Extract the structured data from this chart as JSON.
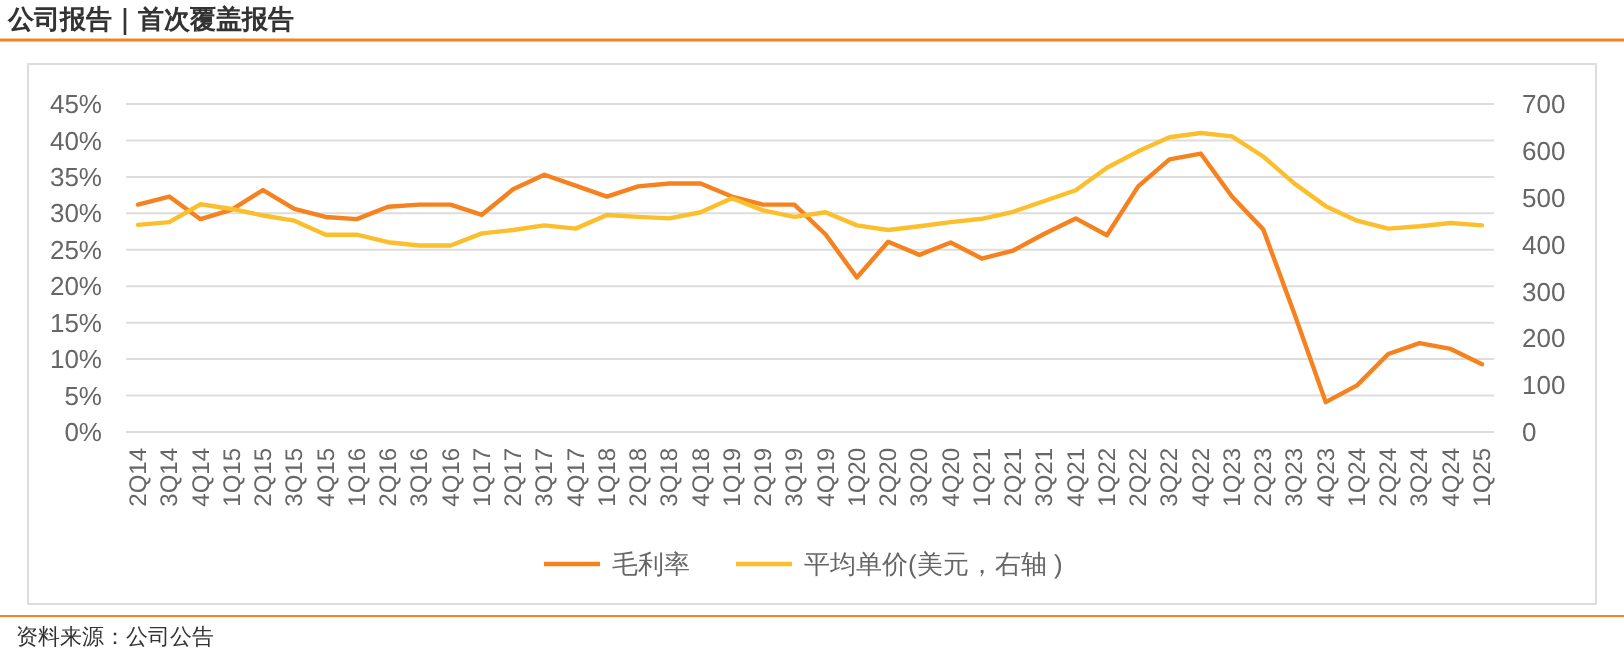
{
  "chart_data": {
    "type": "line",
    "categories": [
      "2Q14",
      "3Q14",
      "4Q14",
      "1Q15",
      "2Q15",
      "3Q15",
      "4Q15",
      "1Q16",
      "2Q16",
      "3Q16",
      "4Q16",
      "1Q17",
      "2Q17",
      "3Q17",
      "4Q17",
      "1Q18",
      "2Q18",
      "3Q18",
      "4Q18",
      "1Q19",
      "2Q19",
      "3Q19",
      "4Q19",
      "1Q20",
      "2Q20",
      "3Q20",
      "4Q20",
      "1Q21",
      "2Q21",
      "3Q21",
      "4Q21",
      "1Q22",
      "2Q22",
      "3Q22",
      "4Q22",
      "1Q23",
      "2Q23",
      "3Q23",
      "4Q23",
      "1Q24",
      "2Q24",
      "3Q24",
      "4Q24",
      "1Q25"
    ],
    "series": [
      {
        "name": "毛利率",
        "color": "#f5821f",
        "values": [
          31.2,
          32.3,
          29.2,
          30.5,
          33.2,
          30.6,
          29.5,
          29.2,
          30.9,
          31.2,
          31.2,
          29.8,
          33.3,
          35.3,
          33.8,
          32.3,
          33.7,
          34.1,
          34.1,
          32.3,
          31.2,
          31.2,
          27.1,
          21.2,
          26.1,
          24.3,
          26.0,
          23.8,
          24.9,
          27.2,
          29.3,
          27.0,
          33.7,
          37.4,
          38.2,
          32.3,
          27.8,
          16.2,
          4.1,
          6.4,
          10.7,
          12.2,
          11.4,
          9.3
        ]
      },
      {
        "name": "平均单价(美元，右轴 )",
        "color": "#fbbf2d",
        "axis": "y2",
        "values": [
          442,
          448,
          486,
          476,
          462,
          451,
          421,
          421,
          405,
          398,
          398,
          424,
          431,
          441,
          434,
          463,
          459,
          456,
          469,
          499,
          473,
          459,
          469,
          441,
          431,
          439,
          448,
          455,
          470,
          493,
          516,
          564,
          599,
          629,
          638,
          631,
          588,
          530,
          482,
          451,
          434,
          439,
          446,
          441
        ]
      }
    ],
    "ylim": [
      0,
      45
    ],
    "yticks": [
      {
        "value": 0,
        "label": "0%"
      },
      {
        "value": 5,
        "label": "5%"
      },
      {
        "value": 10,
        "label": "10%"
      },
      {
        "value": 15,
        "label": "15%"
      },
      {
        "value": 20,
        "label": "20%"
      },
      {
        "value": 25,
        "label": "25%"
      },
      {
        "value": 30,
        "label": "30%"
      },
      {
        "value": 35,
        "label": "35%"
      },
      {
        "value": 40,
        "label": "40%"
      },
      {
        "value": 45,
        "label": "45%"
      }
    ],
    "y2lim": [
      0,
      700
    ],
    "y2ticks": [
      0,
      100,
      200,
      300,
      400,
      500,
      600,
      700
    ],
    "grid": "y",
    "legend": "bottom",
    "marker": "none",
    "line_style": "solid",
    "annotations": [
      "公司报告｜首次覆盖报告",
      "资料来源：公司公告"
    ]
  }
}
